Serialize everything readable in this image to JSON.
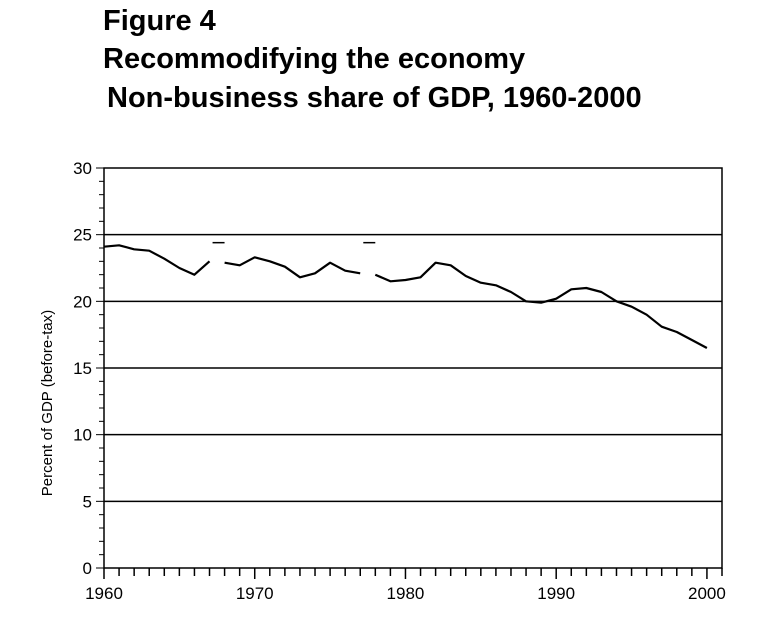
{
  "header": {
    "figure_label": "Figure 4",
    "title": "Recommodifying the economy",
    "subtitle": "Non-business share of GDP, 1960-2000"
  },
  "chart_data": {
    "type": "line",
    "title": "Recommodifying the economy",
    "subtitle": "Non-business share of GDP, 1960-2000",
    "xlabel": "",
    "ylabel": "Percent of GDP (before-tax)",
    "xlim": [
      1960,
      2001
    ],
    "ylim": [
      0,
      30
    ],
    "x_ticks": [
      1960,
      1970,
      1980,
      1990,
      2000
    ],
    "y_ticks": [
      0,
      5,
      10,
      15,
      20,
      25,
      30
    ],
    "y_gridlines": [
      5,
      10,
      15,
      20,
      25
    ],
    "grid": "horizontal",
    "legend": "none",
    "line_color": "#000000",
    "series": [
      {
        "x": [
          1960,
          1961,
          1962,
          1963,
          1964,
          1965,
          1966,
          1967,
          1968,
          1969,
          1970,
          1971,
          1972,
          1973,
          1974,
          1975,
          1976,
          1977,
          1978,
          1979,
          1980,
          1981,
          1982,
          1983,
          1984,
          1985,
          1986,
          1987,
          1988,
          1989,
          1990,
          1991,
          1992,
          1993,
          1994,
          1995,
          1996,
          1997,
          1998,
          1999,
          2000
        ],
        "values": [
          24.1,
          24.2,
          23.9,
          23.8,
          23.2,
          22.5,
          22.0,
          23.0,
          22.9,
          22.7,
          23.3,
          23.0,
          22.6,
          21.8,
          22.1,
          22.9,
          22.3,
          22.1,
          22.0,
          21.5,
          21.6,
          21.8,
          22.9,
          22.7,
          21.9,
          21.4,
          21.2,
          20.7,
          20.0,
          19.9,
          20.2,
          20.9,
          21.0,
          20.7,
          20.0,
          19.6,
          19.0,
          18.1,
          17.7,
          17.1,
          16.5
        ]
      }
    ],
    "line_gaps_after": [
      1967,
      1977
    ],
    "marks": [
      {
        "x": 1967.6,
        "y": 24.4
      },
      {
        "x": 1977.6,
        "y": 24.4
      }
    ]
  }
}
